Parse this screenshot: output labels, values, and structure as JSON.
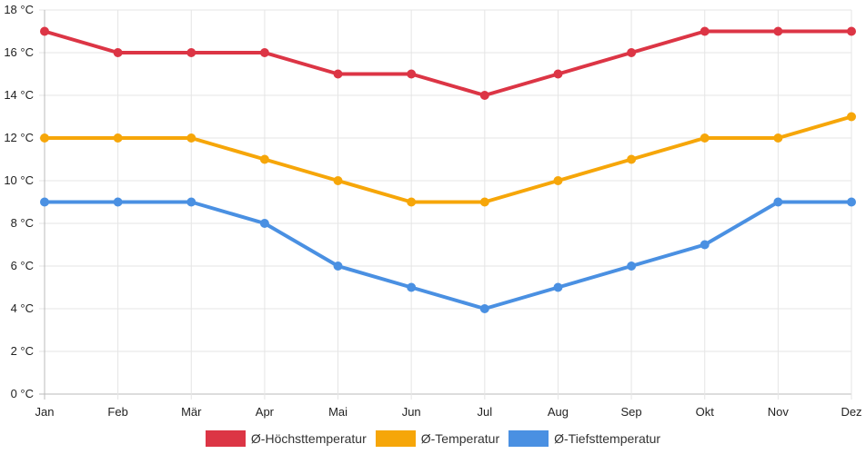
{
  "chart_data": {
    "type": "line",
    "title": "",
    "xlabel": "",
    "ylabel": "",
    "unit": "°C",
    "categories": [
      "Jan",
      "Feb",
      "Mär",
      "Apr",
      "Mai",
      "Jun",
      "Jul",
      "Aug",
      "Sep",
      "Okt",
      "Nov",
      "Dez"
    ],
    "ylim": [
      0,
      18
    ],
    "ytick_step": 2,
    "ytick_labels": [
      "0 °C",
      "2 °C",
      "4 °C",
      "6 °C",
      "8 °C",
      "10 °C",
      "12 °C",
      "14 °C",
      "16 °C",
      "18 °C"
    ],
    "grid": true,
    "legend_position": "bottom-center",
    "series": [
      {
        "name": "Ø-Höchsttemperatur",
        "color": "#dc3545",
        "values": [
          17,
          16,
          16,
          16,
          15,
          15,
          14,
          15,
          16,
          17,
          17,
          17
        ]
      },
      {
        "name": "Ø-Temperatur",
        "color": "#f6a609",
        "values": [
          12,
          12,
          12,
          11,
          10,
          9,
          9,
          10,
          11,
          12,
          12,
          13
        ]
      },
      {
        "name": "Ø-Tiefsttemperatur",
        "color": "#4a90e2",
        "values": [
          9,
          9,
          9,
          8,
          6,
          5,
          4,
          5,
          6,
          7,
          9,
          9
        ]
      }
    ]
  }
}
